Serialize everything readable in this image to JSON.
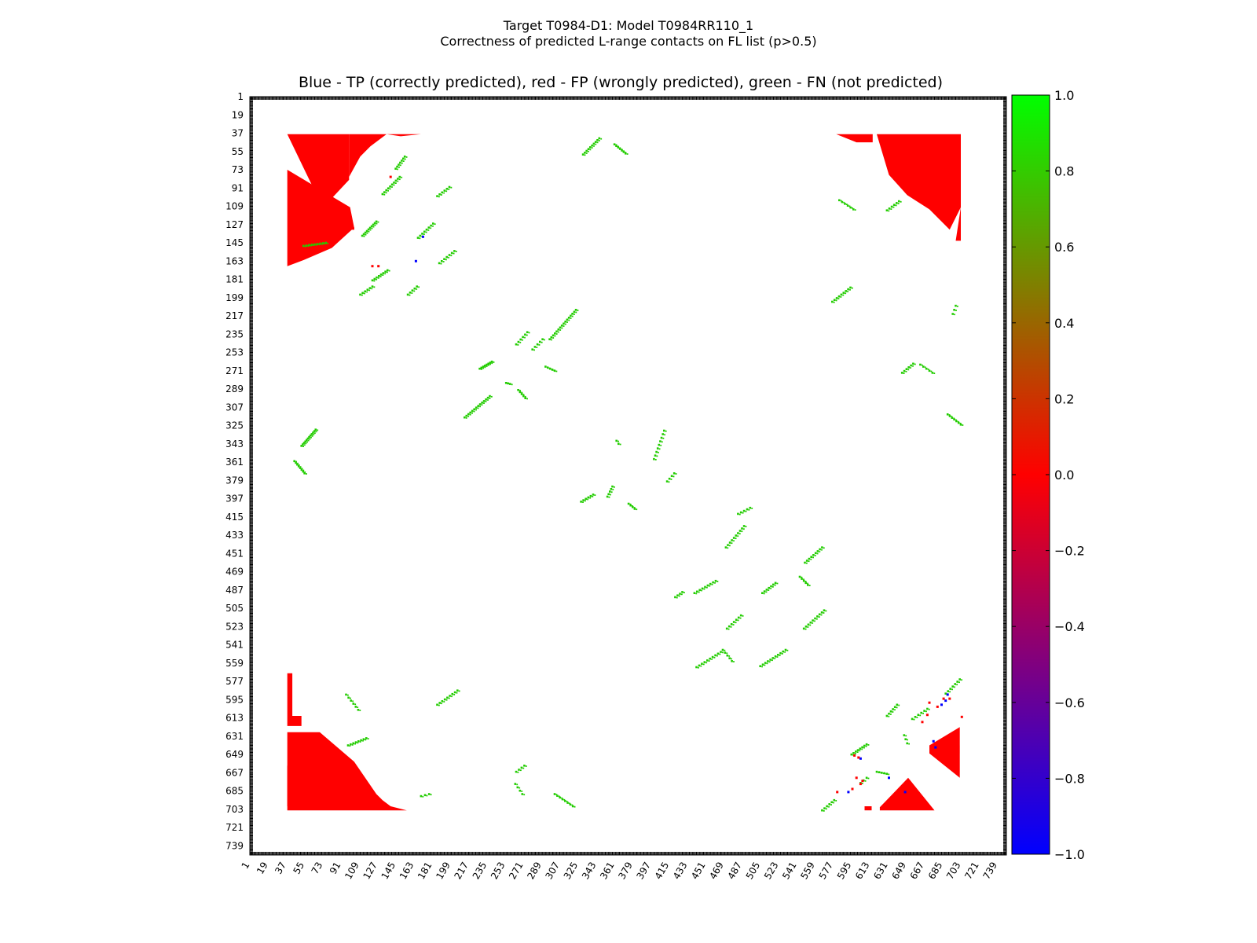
{
  "figure": {
    "title_line1": "Target T0984-D1: Model T0984RR110_1",
    "title_line2": "Correctness of predicted L-range contacts on FL list (p>0.5)"
  },
  "chart_data": {
    "type": "heatmap",
    "title": "Blue - TP (correctly predicted), red - FP (wrongly predicted), green - FN (not predicted)",
    "x_range": [
      1,
      748
    ],
    "y_range": [
      1,
      748
    ],
    "y_inverted": true,
    "tick_labels": [
      "1",
      "19",
      "37",
      "55",
      "73",
      "91",
      "109",
      "127",
      "145",
      "163",
      "181",
      "199",
      "217",
      "235",
      "253",
      "271",
      "289",
      "307",
      "325",
      "343",
      "361",
      "379",
      "397",
      "415",
      "433",
      "451",
      "469",
      "487",
      "505",
      "523",
      "541",
      "559",
      "577",
      "595",
      "613",
      "631",
      "649",
      "667",
      "685",
      "703",
      "721",
      "739"
    ],
    "colorbar": {
      "range": [
        -1.0,
        1.0
      ],
      "colors": [
        "#0000ff",
        "#ff0000",
        "#00ff00"
      ],
      "tick_labels": [
        "1.0",
        "0.8",
        "0.6",
        "0.4",
        "0.2",
        "0.0",
        "−0.2",
        "−0.4",
        "−0.6",
        "−0.8",
        "−1.0"
      ]
    },
    "colors": {
      "fp": "#ff0000",
      "tp": "#0000ff",
      "fn": "#22cc00"
    },
    "fp_regions": [
      {
        "poly": [
          [
            38,
            38
          ],
          [
            99,
            38
          ],
          [
            99,
            83
          ],
          [
            82,
            101
          ],
          [
            68,
            100
          ]
        ]
      },
      {
        "poly": [
          [
            38,
            73
          ],
          [
            100,
            110
          ],
          [
            104,
            130
          ],
          [
            82,
            150
          ],
          [
            54,
            162
          ],
          [
            38,
            168
          ]
        ]
      },
      {
        "poly": [
          [
            99,
            38
          ],
          [
            136,
            38
          ],
          [
            120,
            50
          ],
          [
            110,
            60
          ],
          [
            99,
            80
          ]
        ]
      },
      {
        "poly": [
          [
            136,
            38
          ],
          [
            170,
            38
          ],
          [
            150,
            40
          ]
        ]
      },
      {
        "poly": [
          [
            620,
            38
          ],
          [
            703,
            38
          ],
          [
            703,
            110
          ],
          [
            692,
            132
          ],
          [
            672,
            112
          ],
          [
            650,
            98
          ],
          [
            632,
            78
          ]
        ]
      },
      {
        "poly": [
          [
            703,
            110
          ],
          [
            703,
            143
          ],
          [
            698,
            143
          ]
        ]
      },
      {
        "poly": [
          [
            580,
            38
          ],
          [
            616,
            38
          ],
          [
            616,
            46
          ],
          [
            600,
            46
          ]
        ]
      },
      {
        "poly": [
          [
            38,
            569
          ],
          [
            43,
            569
          ],
          [
            43,
            611
          ],
          [
            38,
            611
          ]
        ]
      },
      {
        "poly": [
          [
            38,
            611
          ],
          [
            52,
            611
          ],
          [
            52,
            621
          ],
          [
            38,
            621
          ]
        ]
      },
      {
        "poly": [
          [
            38,
            627
          ],
          [
            70,
            627
          ],
          [
            104,
            656
          ],
          [
            126,
            688
          ],
          [
            132,
            694
          ],
          [
            140,
            700
          ],
          [
            156,
            704
          ],
          [
            38,
            704
          ]
        ]
      },
      {
        "poly": [
          [
            38,
            660
          ],
          [
            80,
            680
          ],
          [
            130,
            700
          ],
          [
            38,
            700
          ]
        ]
      },
      {
        "poly": [
          [
            623,
            701
          ],
          [
            651,
            672
          ],
          [
            677,
            704
          ],
          [
            623,
            704
          ]
        ]
      },
      {
        "poly": [
          [
            702,
            622
          ],
          [
            702,
            672
          ],
          [
            672,
            648
          ],
          [
            672,
            640
          ]
        ]
      },
      {
        "poly": [
          [
            608,
            700
          ],
          [
            615,
            700
          ],
          [
            615,
            704
          ],
          [
            608,
            704
          ]
        ]
      }
    ],
    "fn_segments": [
      {
        "x1": 52,
        "y1": 345,
        "x2": 66,
        "y2": 329,
        "n": 12
      },
      {
        "x1": 45,
        "y1": 360,
        "x2": 55,
        "y2": 372,
        "n": 8
      },
      {
        "x1": 54,
        "y1": 148,
        "x2": 76,
        "y2": 145,
        "n": 9
      },
      {
        "x1": 112,
        "y1": 138,
        "x2": 126,
        "y2": 124,
        "n": 10
      },
      {
        "x1": 132,
        "y1": 97,
        "x2": 149,
        "y2": 80,
        "n": 10
      },
      {
        "x1": 145,
        "y1": 72,
        "x2": 154,
        "y2": 60,
        "n": 7
      },
      {
        "x1": 167,
        "y1": 140,
        "x2": 182,
        "y2": 126,
        "n": 8
      },
      {
        "x1": 186,
        "y1": 99,
        "x2": 198,
        "y2": 90,
        "n": 6
      },
      {
        "x1": 188,
        "y1": 165,
        "x2": 203,
        "y2": 153,
        "n": 7
      },
      {
        "x1": 122,
        "y1": 182,
        "x2": 137,
        "y2": 172,
        "n": 8
      },
      {
        "x1": 110,
        "y1": 196,
        "x2": 122,
        "y2": 188,
        "n": 6
      },
      {
        "x1": 157,
        "y1": 196,
        "x2": 166,
        "y2": 188,
        "n": 5
      },
      {
        "x1": 330,
        "y1": 58,
        "x2": 346,
        "y2": 42,
        "n": 10
      },
      {
        "x1": 361,
        "y1": 48,
        "x2": 372,
        "y2": 57,
        "n": 7
      },
      {
        "x1": 297,
        "y1": 240,
        "x2": 323,
        "y2": 211,
        "n": 16
      },
      {
        "x1": 264,
        "y1": 245,
        "x2": 275,
        "y2": 233,
        "n": 6
      },
      {
        "x1": 280,
        "y1": 250,
        "x2": 290,
        "y2": 240,
        "n": 5
      },
      {
        "x1": 228,
        "y1": 269,
        "x2": 240,
        "y2": 262,
        "n": 8
      },
      {
        "x1": 293,
        "y1": 267,
        "x2": 302,
        "y2": 271,
        "n": 5
      },
      {
        "x1": 213,
        "y1": 317,
        "x2": 238,
        "y2": 296,
        "n": 14
      },
      {
        "x1": 266,
        "y1": 290,
        "x2": 273,
        "y2": 298,
        "n": 5
      },
      {
        "x1": 254,
        "y1": 283,
        "x2": 258,
        "y2": 284,
        "n": 3
      },
      {
        "x1": 400,
        "y1": 358,
        "x2": 410,
        "y2": 330,
        "n": 9
      },
      {
        "x1": 413,
        "y1": 380,
        "x2": 420,
        "y2": 372,
        "n": 4
      },
      {
        "x1": 328,
        "y1": 400,
        "x2": 340,
        "y2": 393,
        "n": 6
      },
      {
        "x1": 354,
        "y1": 395,
        "x2": 359,
        "y2": 385,
        "n": 5
      },
      {
        "x1": 375,
        "y1": 402,
        "x2": 381,
        "y2": 407,
        "n": 4
      },
      {
        "x1": 363,
        "y1": 340,
        "x2": 365,
        "y2": 343,
        "n": 2
      },
      {
        "x1": 471,
        "y1": 445,
        "x2": 489,
        "y2": 424,
        "n": 10
      },
      {
        "x1": 483,
        "y1": 412,
        "x2": 495,
        "y2": 406,
        "n": 5
      },
      {
        "x1": 549,
        "y1": 460,
        "x2": 566,
        "y2": 445,
        "n": 9
      },
      {
        "x1": 544,
        "y1": 474,
        "x2": 552,
        "y2": 482,
        "n": 5
      },
      {
        "x1": 507,
        "y1": 490,
        "x2": 520,
        "y2": 480,
        "n": 7
      },
      {
        "x1": 421,
        "y1": 494,
        "x2": 428,
        "y2": 489,
        "n": 4
      },
      {
        "x1": 440,
        "y1": 490,
        "x2": 461,
        "y2": 478,
        "n": 9
      },
      {
        "x1": 472,
        "y1": 525,
        "x2": 486,
        "y2": 512,
        "n": 7
      },
      {
        "x1": 548,
        "y1": 525,
        "x2": 568,
        "y2": 507,
        "n": 10
      },
      {
        "x1": 442,
        "y1": 563,
        "x2": 466,
        "y2": 548,
        "n": 10
      },
      {
        "x1": 505,
        "y1": 562,
        "x2": 530,
        "y2": 546,
        "n": 11
      },
      {
        "x1": 468,
        "y1": 546,
        "x2": 477,
        "y2": 557,
        "n": 5
      },
      {
        "x1": 186,
        "y1": 600,
        "x2": 206,
        "y2": 586,
        "n": 9
      },
      {
        "x1": 96,
        "y1": 590,
        "x2": 108,
        "y2": 605,
        "n": 6
      },
      {
        "x1": 98,
        "y1": 640,
        "x2": 116,
        "y2": 633,
        "n": 8
      },
      {
        "x1": 264,
        "y1": 666,
        "x2": 272,
        "y2": 660,
        "n": 4
      },
      {
        "x1": 263,
        "y1": 678,
        "x2": 270,
        "y2": 688,
        "n": 4
      },
      {
        "x1": 302,
        "y1": 688,
        "x2": 320,
        "y2": 700,
        "n": 8
      },
      {
        "x1": 170,
        "y1": 690,
        "x2": 178,
        "y2": 688,
        "n": 3
      },
      {
        "x1": 576,
        "y1": 203,
        "x2": 594,
        "y2": 189,
        "n": 9
      },
      {
        "x1": 583,
        "y1": 103,
        "x2": 597,
        "y2": 112,
        "n": 6
      },
      {
        "x1": 630,
        "y1": 113,
        "x2": 642,
        "y2": 104,
        "n": 6
      },
      {
        "x1": 695,
        "y1": 215,
        "x2": 698,
        "y2": 207,
        "n": 3
      },
      {
        "x1": 645,
        "y1": 273,
        "x2": 656,
        "y2": 264,
        "n": 6
      },
      {
        "x1": 663,
        "y1": 265,
        "x2": 675,
        "y2": 273,
        "n": 5
      },
      {
        "x1": 690,
        "y1": 314,
        "x2": 703,
        "y2": 324,
        "n": 7
      },
      {
        "x1": 630,
        "y1": 611,
        "x2": 640,
        "y2": 600,
        "n": 6
      },
      {
        "x1": 655,
        "y1": 614,
        "x2": 670,
        "y2": 604,
        "n": 6
      },
      {
        "x1": 688,
        "y1": 589,
        "x2": 702,
        "y2": 575,
        "n": 7
      },
      {
        "x1": 647,
        "y1": 630,
        "x2": 650,
        "y2": 638,
        "n": 3
      },
      {
        "x1": 595,
        "y1": 649,
        "x2": 610,
        "y2": 639,
        "n": 8
      },
      {
        "x1": 566,
        "y1": 704,
        "x2": 578,
        "y2": 694,
        "n": 6
      },
      {
        "x1": 620,
        "y1": 666,
        "x2": 630,
        "y2": 668,
        "n": 5
      },
      {
        "x1": 604,
        "y1": 677,
        "x2": 610,
        "y2": 672,
        "n": 3
      }
    ],
    "tp_points": [
      [
        172,
        139
      ],
      [
        165,
        163
      ],
      [
        632,
        672
      ],
      [
        604,
        653
      ],
      [
        684,
        600
      ],
      [
        688,
        596
      ],
      [
        690,
        590
      ],
      [
        676,
        636
      ],
      [
        678,
        642
      ],
      [
        592,
        686
      ],
      [
        648,
        686
      ]
    ],
    "fp_points": [
      [
        103,
        131
      ],
      [
        122,
        168
      ],
      [
        128,
        168
      ],
      [
        140,
        80
      ],
      [
        600,
        672
      ],
      [
        606,
        675
      ],
      [
        581,
        686
      ],
      [
        672,
        598
      ],
      [
        680,
        602
      ],
      [
        686,
        594
      ],
      [
        665,
        617
      ],
      [
        670,
        610
      ],
      [
        692,
        594
      ],
      [
        704,
        612
      ],
      [
        598,
        650
      ],
      [
        602,
        652
      ],
      [
        596,
        683
      ],
      [
        604,
        678
      ]
    ]
  }
}
